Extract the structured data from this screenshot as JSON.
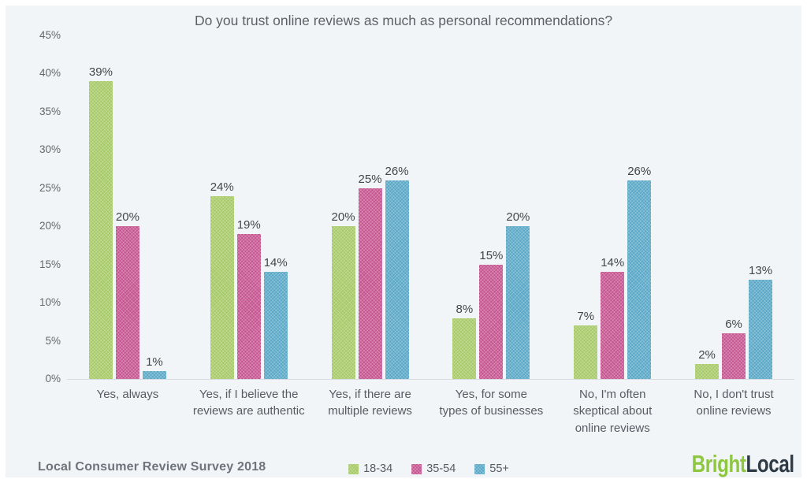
{
  "title": "Do you trust online reviews as much as personal recommendations?",
  "source": "Local Consumer Review Survey 2018",
  "logo": {
    "bright": "Bright",
    "local": "Local"
  },
  "colors": {
    "background": "#f2f5f8",
    "frame_border": "#ffffff",
    "baseline": "#d9dde1",
    "series_green": "#a5c965",
    "series_pink": "#c5538f",
    "series_blue": "#58a7c6",
    "logo_green": "#8dc63f",
    "logo_dark": "#2e3b47"
  },
  "chart_data": {
    "type": "bar",
    "title": "Do you trust online reviews as much as personal recommendations?",
    "categories": [
      "Yes, always",
      "Yes, if I believe the\nreviews are authentic",
      "Yes, if there are\nmultiple reviews",
      "Yes, for some\ntypes of businesses",
      "No, I'm often\nskeptical about\nonline reviews",
      "No, I don't trust\nonline reviews"
    ],
    "series": [
      {
        "name": "18-34",
        "color": "#a5c965",
        "values": [
          39,
          24,
          20,
          8,
          7,
          2
        ]
      },
      {
        "name": "35-54",
        "color": "#c5538f",
        "values": [
          20,
          19,
          25,
          15,
          14,
          6
        ]
      },
      {
        "name": "55+",
        "color": "#58a7c6",
        "values": [
          1,
          14,
          26,
          20,
          26,
          13
        ]
      }
    ],
    "xlabel": "",
    "ylabel": "",
    "ylim": [
      0,
      45
    ],
    "yticks": [
      45,
      40,
      35,
      30,
      25,
      20,
      15,
      10,
      5,
      0
    ],
    "value_suffix": "%",
    "grid": false,
    "legend_position": "bottom"
  }
}
